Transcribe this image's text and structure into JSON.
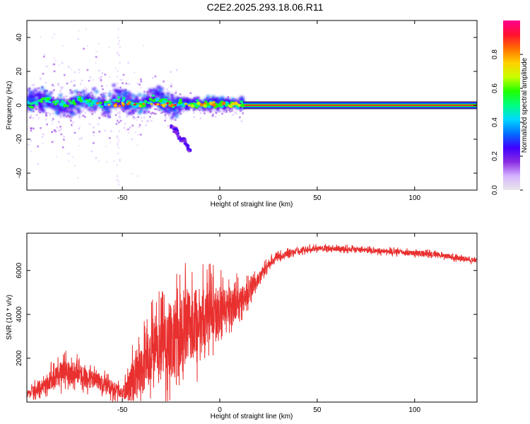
{
  "title": "C2E2.2025.293.18.06.R11",
  "colors": {
    "snr_line": "#e8302f",
    "signal_core": "#e8302f",
    "axis": "#000000",
    "frame": "#000000"
  },
  "chart_data": [
    {
      "type": "heatmap",
      "name": "spectrogram",
      "xlabel": "Height of straight line (km)",
      "ylabel": "Frequency (Hz)",
      "xlim": [
        -99,
        132
      ],
      "ylim": [
        -50,
        50
      ],
      "xticks": [
        -50,
        0,
        50,
        100
      ],
      "yticks": [
        -40,
        -20,
        0,
        20,
        40
      ],
      "colorbar": {
        "label": "Normalized spectral amplitude",
        "range": [
          0,
          1
        ],
        "ticks": [
          0.0,
          0.2,
          0.4,
          0.6,
          0.8
        ],
        "colormap": [
          "#e8e8e8",
          "#d6b3ff",
          "#8a2be2",
          "#4000ff",
          "#0070ff",
          "#00d8ff",
          "#00ff80",
          "#20ff00",
          "#c8ff00",
          "#ffd000",
          "#ff7000",
          "#ff1030",
          "#ff0090"
        ]
      },
      "description_values": {
        "constant_signal_start_km": 12,
        "constant_signal_frequency_hz": 0,
        "scatter_region_km": [
          -99,
          12
        ],
        "descending_tail_km": [
          -25,
          -15
        ],
        "descending_tail_hz": [
          -12,
          -27
        ]
      }
    },
    {
      "type": "line",
      "name": "snr",
      "xlabel": "Height of straight line (km)",
      "ylabel": "SNR (10 * v/v)",
      "xlim": [
        -99,
        132
      ],
      "ylim": [
        0,
        7700
      ],
      "xticks": [
        -50,
        0,
        50,
        100
      ],
      "yticks": [
        2000,
        4000,
        6000
      ],
      "envelope": {
        "x": [
          -99,
          -95,
          -90,
          -85,
          -80,
          -75,
          -70,
          -65,
          -60,
          -55,
          -50,
          -45,
          -40,
          -35,
          -30,
          -25,
          -20,
          -15,
          -10,
          -5,
          0,
          5,
          10,
          15,
          20,
          25,
          30,
          40,
          50,
          60,
          70,
          80,
          90,
          100,
          110,
          120,
          132
        ],
        "mean": [
          350,
          550,
          800,
          1100,
          1400,
          1400,
          1150,
          1000,
          800,
          650,
          400,
          900,
          1500,
          2000,
          2500,
          2800,
          3200,
          3500,
          3800,
          4100,
          4200,
          4400,
          4600,
          5000,
          5600,
          6300,
          6650,
          6900,
          7000,
          7000,
          6950,
          6900,
          6850,
          6800,
          6750,
          6600,
          6450
        ],
        "noise": [
          250,
          350,
          500,
          700,
          750,
          700,
          650,
          600,
          550,
          500,
          300,
          1300,
          1700,
          2000,
          2200,
          2400,
          2400,
          2300,
          2100,
          1800,
          1500,
          1300,
          1000,
          700,
          400,
          280,
          220,
          180,
          160,
          160,
          160,
          160,
          180,
          170,
          160,
          160,
          160
        ]
      }
    }
  ]
}
